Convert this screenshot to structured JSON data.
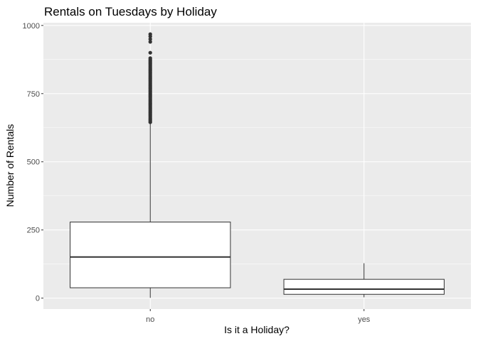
{
  "chart_data": {
    "type": "boxplot",
    "title": "Rentals on Tuesdays by Holiday",
    "xlabel": "Is it a Holiday?",
    "ylabel": "Number of Rentals",
    "categories": [
      "no",
      "yes"
    ],
    "ylim": [
      -40,
      1010
    ],
    "yticks": [
      0,
      250,
      500,
      750,
      1000
    ],
    "boxes": [
      {
        "category": "no",
        "min": 1,
        "q1": 38,
        "median": 151,
        "q3": 279,
        "whisker_high": 640,
        "outliers": [
          645,
          650,
          655,
          660,
          665,
          670,
          675,
          680,
          685,
          690,
          695,
          700,
          705,
          710,
          715,
          720,
          725,
          730,
          735,
          740,
          745,
          750,
          755,
          760,
          765,
          770,
          775,
          780,
          785,
          790,
          795,
          800,
          805,
          810,
          815,
          820,
          825,
          830,
          835,
          840,
          845,
          850,
          855,
          860,
          865,
          870,
          875,
          880,
          900,
          940,
          950,
          960,
          968
        ]
      },
      {
        "category": "yes",
        "min": 3,
        "q1": 14,
        "median": 33,
        "q3": 69,
        "whisker_high": 128,
        "outliers": []
      }
    ],
    "grid": true,
    "colors": {
      "panel_background": "#EBEBEB",
      "grid_major": "#FFFFFF",
      "box_fill": "#FFFFFF",
      "box_stroke": "#333333",
      "outlier": "#333333"
    }
  }
}
